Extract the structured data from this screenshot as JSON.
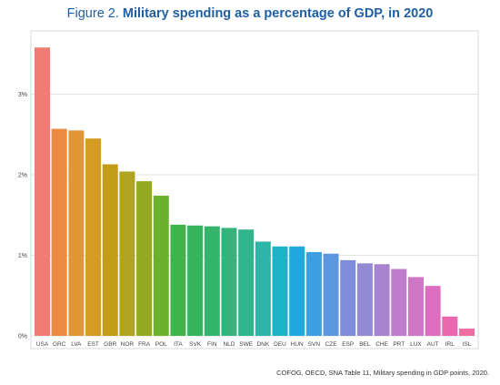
{
  "figure": {
    "prefix": "Figure 2.",
    "title": "Military spending as a percentage of GDP, in 2020",
    "source": "COFOG, OECD, SNA Table 11, Military spending in GDP points, 2020."
  },
  "chart_data": {
    "type": "bar",
    "title": "Military spending as a percentage of GDP, in 2020",
    "xlabel": "",
    "ylabel": "",
    "categories": [
      "USA",
      "GRC",
      "LVA",
      "EST",
      "GBR",
      "NOR",
      "FRA",
      "POL",
      "ITA",
      "SVK",
      "FIN",
      "NLD",
      "SWE",
      "DNK",
      "DEU",
      "HUN",
      "SVN",
      "CZE",
      "ESP",
      "BEL",
      "CHE",
      "PRT",
      "LUX",
      "AUT",
      "IRL",
      "ISL"
    ],
    "values": [
      3.58,
      2.57,
      2.55,
      2.45,
      2.13,
      2.04,
      1.92,
      1.74,
      1.38,
      1.37,
      1.36,
      1.34,
      1.32,
      1.17,
      1.11,
      1.11,
      1.04,
      1.02,
      0.94,
      0.9,
      0.89,
      0.83,
      0.73,
      0.62,
      0.24,
      0.09
    ],
    "ylim": [
      0,
      3.8
    ],
    "yticks": [
      0,
      1,
      2,
      3
    ],
    "ytick_labels": [
      "0%",
      "1%",
      "2%",
      "3%"
    ],
    "grid": true,
    "legend": "none",
    "colors": [
      "#f07c74",
      "#ec8a41",
      "#e29535",
      "#d59b23",
      "#c49d18",
      "#b0a420",
      "#94aa25",
      "#6cb12e",
      "#3db54a",
      "#36b45c",
      "#35b46b",
      "#34b47a",
      "#30b48b",
      "#2bb4a7",
      "#1db2c6",
      "#21a9df",
      "#3e9fe0",
      "#5c97df",
      "#7f8cd9",
      "#938ad4",
      "#a883d0",
      "#be7dcb",
      "#cf76c6",
      "#dc6dbf",
      "#e967ae",
      "#ec6fa3"
    ]
  }
}
